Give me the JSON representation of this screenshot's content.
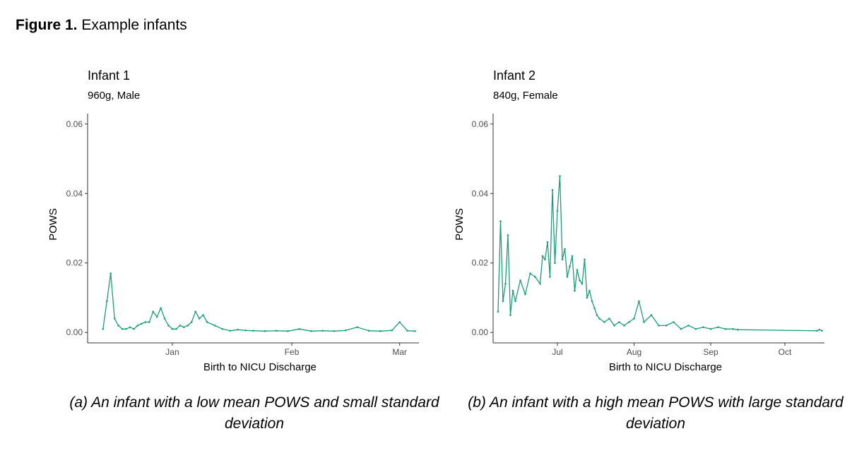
{
  "figure": {
    "label": "Figure 1.",
    "title": "Example infants"
  },
  "captions": [
    "(a) An infant with a low mean POWS and small standard deviation",
    "(b) An infant with a high mean POWS with large standard deviation"
  ],
  "style": {
    "series_color": "#1b9e77",
    "axis_color": "#333333",
    "tick_text_color": "#4d4d4d"
  },
  "chart_data": [
    {
      "type": "line",
      "title": "Infant 1",
      "subtitle": "960g, Male",
      "xlabel": "Birth to NICU Discharge",
      "ylabel": "POWS",
      "ylim": [
        -0.003,
        0.063
      ],
      "xlim": [
        "Dec 10",
        "Mar 06"
      ],
      "yticks": [
        0.0,
        0.02,
        0.04,
        0.06
      ],
      "ytick_labels": [
        "0.00",
        "0.02",
        "0.04",
        "0.06"
      ],
      "xticks": [
        "Jan 1",
        "Feb 1",
        "Mar 1"
      ],
      "xtick_labels": [
        "Jan",
        "Feb",
        "Mar"
      ],
      "grid": false,
      "markers": true,
      "series": [
        {
          "x": [
            "Dec 14",
            "Dec 15",
            "Dec 16",
            "Dec 17",
            "Dec 18",
            "Dec 19",
            "Dec 20",
            "Dec 21",
            "Dec 22",
            "Dec 23",
            "Dec 24",
            "Dec 25",
            "Dec 26",
            "Dec 27",
            "Dec 28",
            "Dec 29",
            "Dec 30",
            "Dec 31",
            "Jan 1",
            "Jan 2",
            "Jan 3",
            "Jan 4",
            "Jan 5",
            "Jan 6",
            "Jan 7",
            "Jan 8",
            "Jan 9",
            "Jan 10",
            "Jan 12",
            "Jan 14",
            "Jan 16",
            "Jan 18",
            "Jan 20",
            "Jan 22",
            "Jan 25",
            "Jan 28",
            "Jan 31",
            "Feb 3",
            "Feb 6",
            "Feb 9",
            "Feb 12",
            "Feb 15",
            "Feb 18",
            "Feb 21",
            "Feb 24",
            "Feb 27",
            "Mar 1",
            "Mar 3",
            "Mar 5"
          ],
          "values": [
            0.001,
            0.009,
            0.017,
            0.004,
            0.002,
            0.001,
            0.001,
            0.0015,
            0.001,
            0.002,
            0.0025,
            0.003,
            0.003,
            0.006,
            0.0045,
            0.007,
            0.004,
            0.002,
            0.001,
            0.001,
            0.002,
            0.0015,
            0.002,
            0.003,
            0.006,
            0.004,
            0.005,
            0.003,
            0.002,
            0.001,
            0.0005,
            0.0008,
            0.0006,
            0.0005,
            0.0004,
            0.0005,
            0.0004,
            0.001,
            0.0004,
            0.0005,
            0.0004,
            0.0006,
            0.0015,
            0.0005,
            0.0004,
            0.0006,
            0.003,
            0.0005,
            0.0004
          ]
        }
      ]
    },
    {
      "type": "line",
      "title": "Infant 2",
      "subtitle": "840g, Female",
      "xlabel": "Birth to NICU Discharge",
      "ylabel": "POWS",
      "ylim": [
        -0.003,
        0.063
      ],
      "xlim": [
        "Jun 05",
        "Oct 17"
      ],
      "yticks": [
        0.0,
        0.02,
        0.04,
        0.06
      ],
      "ytick_labels": [
        "0.00",
        "0.02",
        "0.04",
        "0.06"
      ],
      "xticks": [
        "Jul 1",
        "Aug 1",
        "Sep 1",
        "Oct 1"
      ],
      "xtick_labels": [
        "Jul",
        "Aug",
        "Sep",
        "Oct"
      ],
      "grid": false,
      "markers": true,
      "series": [
        {
          "x": [
            "Jun 7",
            "Jun 8",
            "Jun 9",
            "Jun 10",
            "Jun 11",
            "Jun 12",
            "Jun 13",
            "Jun 14",
            "Jun 16",
            "Jun 18",
            "Jun 20",
            "Jun 22",
            "Jun 24",
            "Jun 25",
            "Jun 26",
            "Jun 27",
            "Jun 28",
            "Jun 29",
            "Jun 30",
            "Jul 1",
            "Jul 2",
            "Jul 3",
            "Jul 4",
            "Jul 5",
            "Jul 6",
            "Jul 7",
            "Jul 8",
            "Jul 9",
            "Jul 10",
            "Jul 11",
            "Jul 12",
            "Jul 13",
            "Jul 14",
            "Jul 15",
            "Jul 16",
            "Jul 17",
            "Jul 18",
            "Jul 20",
            "Jul 22",
            "Jul 24",
            "Jul 26",
            "Jul 28",
            "Jul 30",
            "Aug 1",
            "Aug 3",
            "Aug 5",
            "Aug 8",
            "Aug 11",
            "Aug 14",
            "Aug 17",
            "Aug 20",
            "Aug 23",
            "Aug 26",
            "Aug 29",
            "Sep 1",
            "Sep 4",
            "Sep 7",
            "Sep 10",
            "Sep 12",
            "Oct 14",
            "Oct 15",
            "Oct 16"
          ],
          "values": [
            0.006,
            0.032,
            0.009,
            0.014,
            0.028,
            0.005,
            0.012,
            0.009,
            0.015,
            0.011,
            0.017,
            0.016,
            0.014,
            0.022,
            0.021,
            0.026,
            0.016,
            0.041,
            0.02,
            0.035,
            0.045,
            0.021,
            0.024,
            0.016,
            0.019,
            0.022,
            0.012,
            0.018,
            0.015,
            0.014,
            0.021,
            0.01,
            0.012,
            0.009,
            0.007,
            0.005,
            0.004,
            0.003,
            0.004,
            0.002,
            0.003,
            0.002,
            0.003,
            0.004,
            0.009,
            0.003,
            0.005,
            0.002,
            0.002,
            0.003,
            0.001,
            0.002,
            0.001,
            0.0015,
            0.001,
            0.0015,
            0.001,
            0.001,
            0.0008,
            0.0005,
            0.0008,
            0.0005
          ]
        }
      ]
    }
  ]
}
